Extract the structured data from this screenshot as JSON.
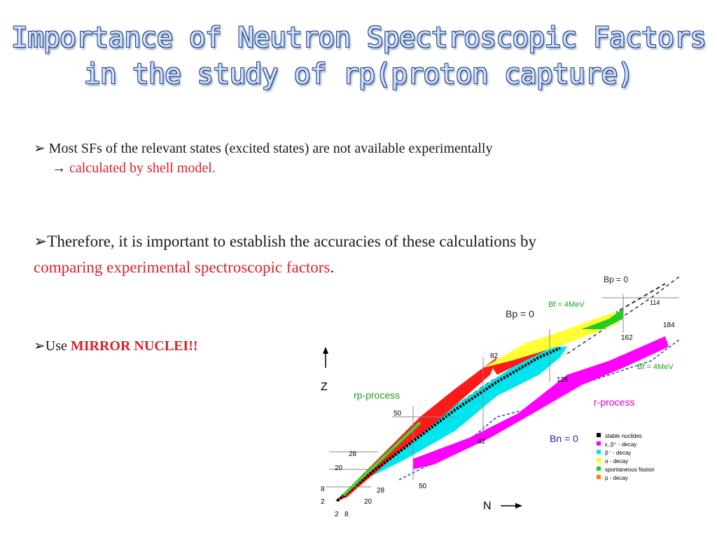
{
  "slide": {
    "title_line1": "Importance of Neutron Spectroscopic Factors",
    "title_line2": "in the study of rp(proton capture)",
    "bullet1_marker": "➢",
    "bullet1_text": "Most SFs of the relevant states (excited states) are not available experimentally",
    "bullet1_arrow": "→",
    "bullet1_cont": "calculated by shell model.",
    "bullet2_marker": "➢",
    "bullet2_text": "Therefore, it is important to establish the accuracies of these calculations by",
    "bullet2_red": "comparing experimental spectroscopic factors",
    "bullet2_end": ".",
    "bullet3_marker": "➢",
    "bullet3_text": "Use ",
    "bullet3_red": "MIRROR NUCLEI!!"
  },
  "figure": {
    "axis_z": "Z",
    "axis_n": "N",
    "labels": {
      "bp0_top": "Bp = 0",
      "bp0_mid": "Bp = 0",
      "bf_top": "Bf = 4MeV",
      "bf_right": "Bf = 4MeV",
      "bn0": "Bn = 0",
      "rp_process": "rp-process",
      "r_process": "r-process"
    },
    "magic": {
      "z2": "2",
      "z8": "8",
      "z20": "20",
      "z28": "28",
      "z50": "50",
      "z82": "82",
      "z114": "114",
      "n2": "2",
      "n8": "8",
      "n20": "20",
      "n28": "28",
      "n50": "50",
      "n82": "82",
      "n126": "126",
      "n162": "162",
      "n184": "184"
    },
    "legend": [
      {
        "label": "stable nuclides",
        "color": "#000000"
      },
      {
        "label": "ε, β⁺ - decay",
        "color": "#ff00ff"
      },
      {
        "label": "β⁻ - decay",
        "color": "#00e5ee"
      },
      {
        "label": "α - decay",
        "color": "#ffff00"
      },
      {
        "label": "spontaneous fission",
        "color": "#22cc22"
      },
      {
        "label": "p - decay",
        "color": "#ff7f00"
      }
    ]
  }
}
